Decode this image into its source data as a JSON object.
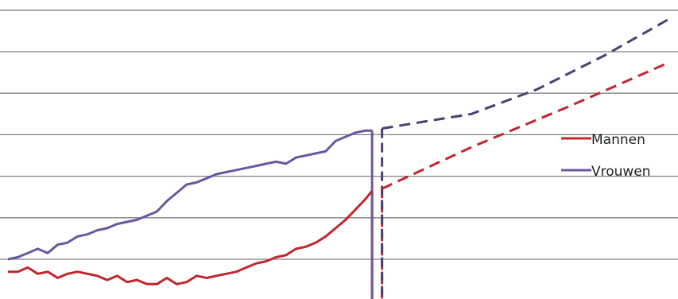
{
  "chart_data": {
    "type": "line",
    "title": "",
    "xlabel": "",
    "ylabel": "",
    "x_range": [
      0,
      100
    ],
    "y_range": [
      -1,
      7
    ],
    "gridlines_y": [
      0,
      1,
      2,
      3,
      4,
      5,
      6,
      7
    ],
    "grid": true,
    "legend_placement": "right",
    "colors": {
      "mannen": "#c0272d",
      "vrouwen": "#6b57a0",
      "vrouwen_projection": "#4f3d73",
      "grid": "#808080"
    },
    "series": [
      {
        "name": "Mannen",
        "color": "#c0272d",
        "historical": [
          [
            0,
            -0.3
          ],
          [
            1.5,
            -0.3
          ],
          [
            3,
            -0.2
          ],
          [
            4.5,
            -0.35
          ],
          [
            6,
            -0.3
          ],
          [
            7.5,
            -0.45
          ],
          [
            9,
            -0.35
          ],
          [
            10.5,
            -0.3
          ],
          [
            12,
            -0.35
          ],
          [
            13.5,
            -0.4
          ],
          [
            15,
            -0.5
          ],
          [
            16.5,
            -0.4
          ],
          [
            18,
            -0.55
          ],
          [
            19.5,
            -0.5
          ],
          [
            21,
            -0.6
          ],
          [
            22.5,
            -0.6
          ],
          [
            24,
            -0.45
          ],
          [
            25.5,
            -0.6
          ],
          [
            27,
            -0.55
          ],
          [
            28.5,
            -0.4
          ],
          [
            30,
            -0.45
          ],
          [
            31.5,
            -0.4
          ],
          [
            33,
            -0.35
          ],
          [
            34.5,
            -0.3
          ],
          [
            36,
            -0.2
          ],
          [
            37.5,
            -0.1
          ],
          [
            39,
            -0.05
          ],
          [
            40.5,
            0.05
          ],
          [
            42,
            0.1
          ],
          [
            43.5,
            0.25
          ],
          [
            45,
            0.3
          ],
          [
            46.5,
            0.4
          ],
          [
            48,
            0.55
          ],
          [
            49.5,
            0.75
          ],
          [
            51,
            0.95
          ],
          [
            52.5,
            1.2
          ],
          [
            54,
            1.45
          ],
          [
            55,
            1.65
          ]
        ],
        "projection": [
          [
            56.5,
            1.7
          ],
          [
            70,
            2.7
          ],
          [
            85,
            3.7
          ],
          [
            100,
            4.75
          ]
        ]
      },
      {
        "name": "Vrouwen",
        "color": "#6b57a0",
        "historical": [
          [
            0,
            0
          ],
          [
            1.5,
            0.05
          ],
          [
            3,
            0.15
          ],
          [
            4.5,
            0.25
          ],
          [
            6,
            0.15
          ],
          [
            7.5,
            0.35
          ],
          [
            9,
            0.4
          ],
          [
            10.5,
            0.55
          ],
          [
            12,
            0.6
          ],
          [
            13.5,
            0.7
          ],
          [
            15,
            0.75
          ],
          [
            16.5,
            0.85
          ],
          [
            18,
            0.9
          ],
          [
            19.5,
            0.95
          ],
          [
            21,
            1.05
          ],
          [
            22.5,
            1.15
          ],
          [
            24,
            1.4
          ],
          [
            25.5,
            1.6
          ],
          [
            27,
            1.8
          ],
          [
            28.5,
            1.85
          ],
          [
            30,
            1.95
          ],
          [
            31.5,
            2.05
          ],
          [
            33,
            2.1
          ],
          [
            34.5,
            2.15
          ],
          [
            36,
            2.2
          ],
          [
            37.5,
            2.25
          ],
          [
            39,
            2.3
          ],
          [
            40.5,
            2.35
          ],
          [
            42,
            2.3
          ],
          [
            43.5,
            2.45
          ],
          [
            45,
            2.5
          ],
          [
            46.5,
            2.55
          ],
          [
            48,
            2.6
          ],
          [
            49.5,
            2.85
          ],
          [
            51,
            2.95
          ],
          [
            52.5,
            3.05
          ],
          [
            54,
            3.1
          ],
          [
            55,
            3.1
          ]
        ],
        "projection": [
          [
            56.5,
            3.15
          ],
          [
            70,
            3.5
          ],
          [
            80,
            4.1
          ],
          [
            90,
            4.9
          ],
          [
            100,
            5.8
          ]
        ]
      }
    ]
  }
}
